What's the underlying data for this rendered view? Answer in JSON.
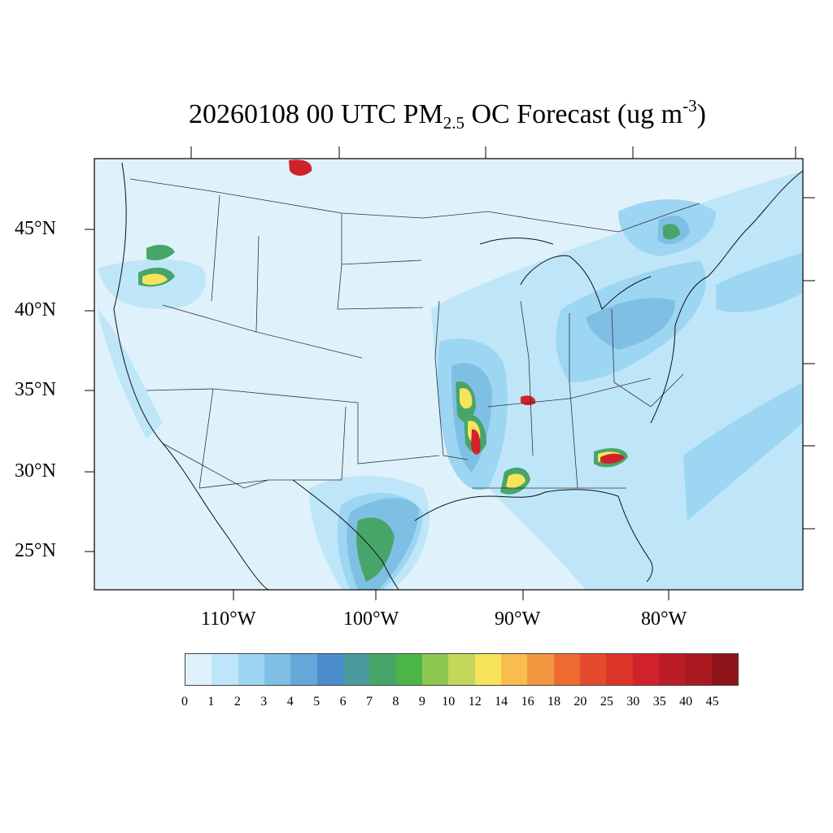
{
  "title": {
    "prefix": "20260108 00 UTC PM",
    "subscript": "2.5",
    "middle": " OC Forecast (ug m",
    "superscript": "-3",
    "suffix": ")"
  },
  "latitude_labels": [
    "45°N",
    "40°N",
    "35°N",
    "30°N",
    "25°N"
  ],
  "longitude_labels": [
    "110°W",
    "100°W",
    "90°W",
    "80°W"
  ],
  "colorbar": {
    "labels": [
      "0",
      "1",
      "2",
      "3",
      "4",
      "5",
      "6",
      "7",
      "8",
      "9",
      "10",
      "12",
      "14",
      "16",
      "18",
      "20",
      "25",
      "30",
      "35",
      "40",
      "45"
    ],
    "colors": [
      "#dff2fb",
      "#bfe6f8",
      "#9dd6f3",
      "#80bfe4",
      "#64a7d9",
      "#4a8ccb",
      "#4b9aa0",
      "#48a56a",
      "#4cb548",
      "#8cc750",
      "#c2d65a",
      "#f7e45a",
      "#f7bd4d",
      "#f39640",
      "#ee6a30",
      "#e64a2e",
      "#db3529",
      "#d1222b",
      "#bc1c25",
      "#a9191f",
      "#8d1319"
    ]
  },
  "map_colors": {
    "background": "#dff2fb",
    "light_blue": "#bfe6f8",
    "mid_blue": "#9dd6f3",
    "blue": "#80bfe4",
    "green": "#4cb548",
    "yellow": "#f7e45a",
    "orange": "#f39640",
    "red": "#d1222b"
  }
}
